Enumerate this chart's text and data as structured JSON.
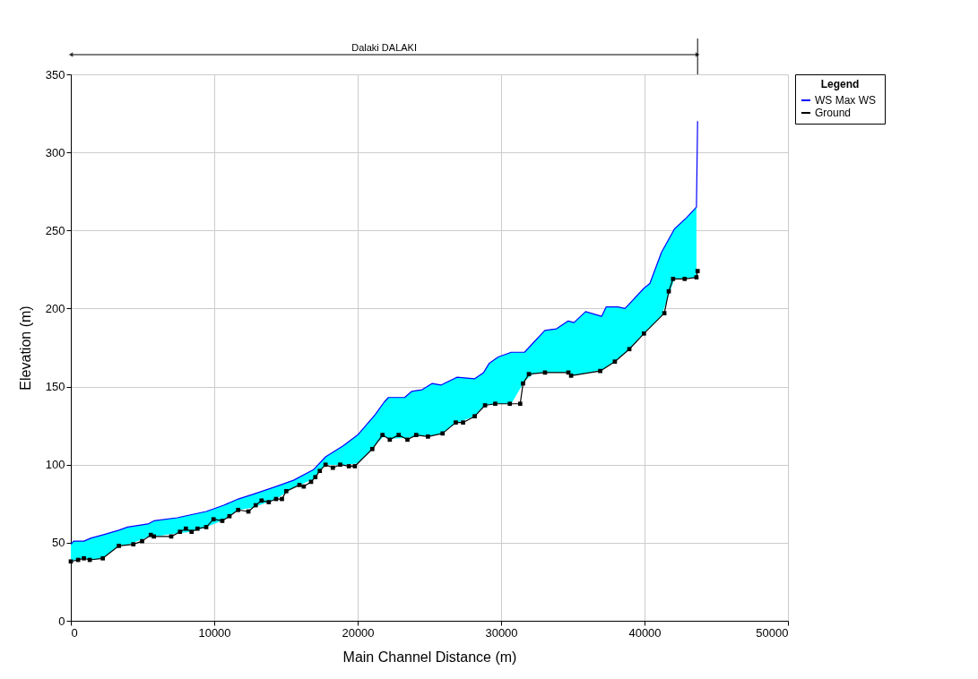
{
  "chart_data": {
    "type": "line",
    "xlabel": "Main Channel Distance (m)",
    "ylabel": "Elevation (m)",
    "xlim": [
      0,
      50000
    ],
    "xticks": [
      0,
      10000,
      20000,
      30000,
      40000,
      50000
    ],
    "ylim": [
      0,
      350
    ],
    "yticks": [
      0,
      50,
      100,
      150,
      200,
      250,
      300,
      350
    ],
    "grid": true,
    "legend": "right",
    "legend_title": "Legend",
    "annotations": [
      "Dalaki DALAKI"
    ],
    "series": [
      {
        "type": "area",
        "color": "#00ffff",
        "x": [
          0,
          200,
          910,
          1420,
          2230,
          3350,
          3960,
          5380,
          5790,
          7410,
          8420,
          9440,
          10660,
          11670,
          12690,
          14310,
          15530,
          16950,
          17760,
          18980,
          20000,
          21220,
          21840,
          22140,
          23270,
          23780,
          24490,
          25200,
          25820,
          26940,
          28160,
          28780,
          29180,
          29800,
          30710,
          31630,
          32240,
          33050,
          33860,
          34680,
          35080,
          35890,
          37010,
          37320,
          38130,
          38640,
          39960,
          40370,
          41180,
          42090,
          42910,
          43620
        ],
        "values": [
          49,
          51,
          51,
          53,
          55,
          58,
          60,
          62,
          64,
          66,
          68,
          70,
          74,
          78,
          81,
          86,
          90,
          97,
          105,
          112,
          119,
          132,
          140,
          143,
          143,
          147,
          148,
          152,
          151,
          156,
          155,
          159,
          165,
          169,
          172,
          172,
          178,
          186,
          187,
          192,
          191,
          198,
          195,
          201,
          201,
          200,
          213,
          216,
          236,
          251,
          258,
          265
        ]
      },
      {
        "name": "WS  Max WS",
        "color": "#0000ff",
        "x": [
          0,
          200,
          910,
          1420,
          2230,
          3350,
          3960,
          5380,
          5790,
          7410,
          8420,
          9440,
          10660,
          11670,
          12690,
          14310,
          15530,
          16950,
          17760,
          18980,
          20000,
          21220,
          21840,
          22140,
          23270,
          23780,
          24490,
          25200,
          25820,
          26940,
          28160,
          28780,
          29180,
          29800,
          30710,
          31630,
          32240,
          33050,
          33860,
          34680,
          35080,
          35890,
          37010,
          37320,
          38130,
          38640,
          39960,
          40370,
          41180,
          42090,
          42910,
          43620,
          43700
        ],
        "values": [
          49,
          51,
          51,
          53,
          55,
          58,
          60,
          62,
          64,
          66,
          68,
          70,
          74,
          78,
          81,
          86,
          90,
          97,
          105,
          112,
          119,
          132,
          140,
          143,
          143,
          147,
          148,
          152,
          151,
          156,
          155,
          159,
          165,
          169,
          172,
          172,
          178,
          186,
          187,
          192,
          191,
          198,
          195,
          201,
          201,
          200,
          213,
          216,
          236,
          251,
          258,
          265,
          320
        ]
      },
      {
        "name": "Ground",
        "color": "#000000",
        "marker": "square",
        "x": [
          0,
          510,
          910,
          1320,
          2230,
          3350,
          4360,
          4970,
          5580,
          5790,
          7000,
          7610,
          8020,
          8420,
          8830,
          9440,
          9950,
          10560,
          11060,
          11670,
          12380,
          12890,
          13300,
          13800,
          14310,
          14720,
          15020,
          15940,
          16240,
          16750,
          17050,
          17360,
          17760,
          18270,
          18780,
          19390,
          19800,
          21020,
          21730,
          22240,
          22860,
          23470,
          24080,
          24900,
          25920,
          26840,
          27350,
          28160,
          28880,
          29590,
          30610,
          31330,
          31530,
          31940,
          33060,
          34690,
          34880,
          36910,
          37930,
          38940,
          39960,
          41380,
          41690,
          41990,
          42800,
          43620,
          43700
        ],
        "values": [
          38,
          39,
          40,
          39,
          40,
          48,
          49,
          51,
          55,
          54,
          54,
          57,
          59,
          57,
          59,
          60,
          65,
          64,
          67,
          71,
          70,
          74,
          77,
          76,
          78,
          78,
          83,
          87,
          86,
          89,
          92,
          96,
          100,
          98,
          100,
          99,
          99,
          110,
          119,
          116,
          119,
          116,
          119,
          118,
          120,
          127,
          127,
          131,
          138,
          139,
          139,
          139,
          152,
          158,
          159,
          159,
          157,
          160,
          166,
          174,
          184,
          197,
          211,
          219,
          219,
          220,
          224
        ]
      }
    ]
  }
}
